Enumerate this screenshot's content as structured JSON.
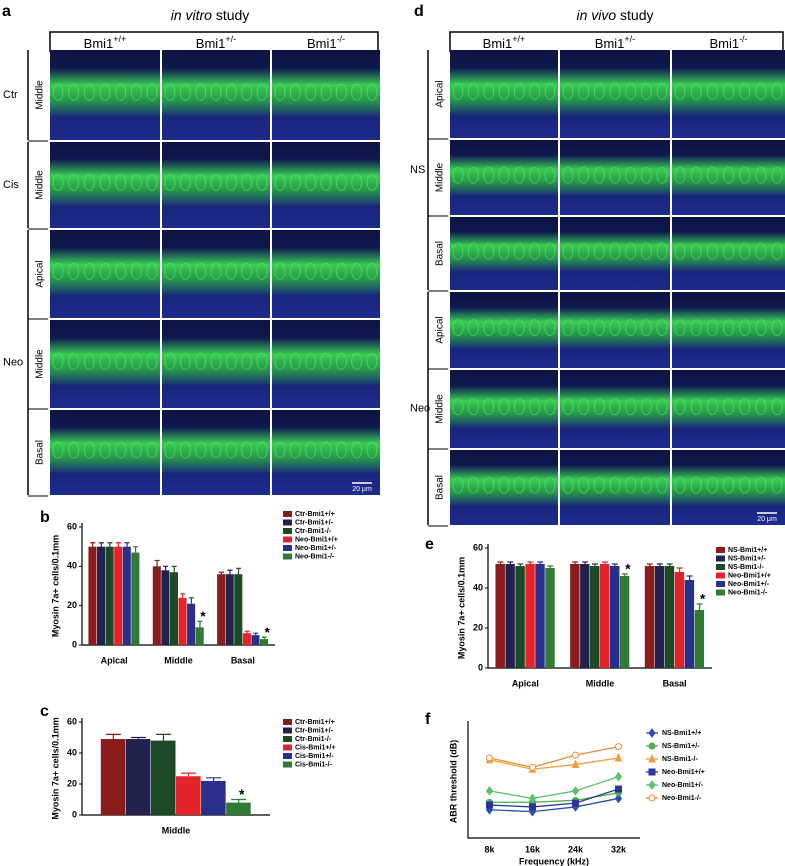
{
  "figure": {
    "a": {
      "label": "a",
      "title_italic": "in vitro",
      "title_rest": "study",
      "columns": [
        {
          "base": "Bmi1",
          "sup": "+/+"
        },
        {
          "base": "Bmi1",
          "sup": "+/-"
        },
        {
          "base": "Bmi1",
          "sup": "-/-"
        }
      ],
      "groups": [
        {
          "name": "Ctr",
          "rows": [
            "Middle"
          ]
        },
        {
          "name": "Cis",
          "rows": [
            "Middle"
          ]
        },
        {
          "name": "Neo",
          "rows": [
            "Apical",
            "Middle",
            "Basal"
          ]
        }
      ],
      "scale_bar": "20 μm"
    },
    "d": {
      "label": "d",
      "title_italic": "in vivo",
      "title_rest": "study",
      "columns": [
        {
          "base": "Bmi1",
          "sup": "+/+"
        },
        {
          "base": "Bmi1",
          "sup": "+/-"
        },
        {
          "base": "Bmi1",
          "sup": "-/-"
        }
      ],
      "groups": [
        {
          "name": "NS",
          "rows": [
            "Apical",
            "Middle",
            "Basal"
          ]
        },
        {
          "name": "Neo",
          "rows": [
            "Apical",
            "Middle",
            "Basal"
          ]
        }
      ],
      "scale_bar": "20 μm"
    }
  },
  "chart_data": [
    {
      "type": "bar",
      "label": "b",
      "y_label": "Myosin 7a+ cells/0.1mm",
      "categories": [
        "Apical",
        "Middle",
        "Basal"
      ],
      "ylim": [
        0,
        60
      ],
      "yticks": [
        0,
        20,
        40,
        60
      ],
      "series": [
        {
          "name": "Ctr-Bmi1+/+",
          "color": "#8b1c1c",
          "values": [
            50,
            40,
            36
          ],
          "errors": [
            2,
            3,
            1
          ]
        },
        {
          "name": "Ctr-Bmi1+/-",
          "color": "#22224f",
          "values": [
            50,
            38,
            36
          ],
          "errors": [
            2,
            2,
            2
          ]
        },
        {
          "name": "Ctr-Bmi1-/-",
          "color": "#1d4a26",
          "values": [
            50,
            37,
            36
          ],
          "errors": [
            2,
            3,
            3
          ]
        },
        {
          "name": "Neo-Bmi1+/+",
          "color": "#e3232a",
          "values": [
            50,
            24,
            6
          ],
          "errors": [
            2,
            2,
            1
          ]
        },
        {
          "name": "Neo-Bmi1+/-",
          "color": "#2a2f8c",
          "values": [
            50,
            21,
            5
          ],
          "errors": [
            2,
            3,
            1
          ]
        },
        {
          "name": "Neo-Bmi1-/-",
          "color": "#2f7a35",
          "values": [
            47,
            9,
            3
          ],
          "errors": [
            3,
            3,
            1
          ],
          "significance": [
            null,
            "*",
            "*"
          ]
        }
      ]
    },
    {
      "type": "bar",
      "label": "c",
      "y_label": "Myosin 7a+ cells/0.1mm",
      "categories": [
        "Middle"
      ],
      "ylim": [
        0,
        60
      ],
      "yticks": [
        0,
        20,
        40,
        60
      ],
      "series": [
        {
          "name": "Ctr-Bmi1+/+",
          "color": "#8b1c1c",
          "values": [
            49
          ],
          "errors": [
            3
          ]
        },
        {
          "name": "Ctr-Bmi1+/-",
          "color": "#22224f",
          "values": [
            49
          ],
          "errors": [
            1
          ]
        },
        {
          "name": "Ctr-Bmi1-/-",
          "color": "#1d4a26",
          "values": [
            48
          ],
          "errors": [
            4
          ]
        },
        {
          "name": "Cis-Bmi1+/+",
          "color": "#e3232a",
          "values": [
            25
          ],
          "errors": [
            2
          ]
        },
        {
          "name": "Cis-Bmi1+/-",
          "color": "#2a2f8c",
          "values": [
            22
          ],
          "errors": [
            2
          ]
        },
        {
          "name": "Cis-Bmi1-/-",
          "color": "#2f7a35",
          "values": [
            8
          ],
          "errors": [
            2
          ],
          "significance": [
            "*"
          ]
        }
      ]
    },
    {
      "type": "bar",
      "label": "e",
      "y_label": "Myosin 7a+ cells/0.1mm",
      "categories": [
        "Apical",
        "Middle",
        "Basal"
      ],
      "ylim": [
        0,
        60
      ],
      "yticks": [
        0,
        20,
        40,
        60
      ],
      "series": [
        {
          "name": "NS-Bmi1+/+",
          "color": "#8b1c1c",
          "values": [
            52,
            52,
            51
          ],
          "errors": [
            1,
            1,
            1
          ]
        },
        {
          "name": "NS-Bmi1+/-",
          "color": "#22224f",
          "values": [
            52,
            52,
            51
          ],
          "errors": [
            1,
            1,
            1
          ]
        },
        {
          "name": "NS-Bmi1-/-",
          "color": "#1d4a26",
          "values": [
            51,
            51,
            51
          ],
          "errors": [
            1,
            1,
            1
          ]
        },
        {
          "name": "Neo-Bmi1+/+",
          "color": "#e3232a",
          "values": [
            52,
            52,
            48
          ],
          "errors": [
            1,
            1,
            2
          ]
        },
        {
          "name": "Neo-Bmi1+/-",
          "color": "#2a2f8c",
          "values": [
            52,
            51,
            44
          ],
          "errors": [
            1,
            1,
            2
          ]
        },
        {
          "name": "Neo-Bmi1-/-",
          "color": "#2f7a35",
          "values": [
            50,
            46,
            29
          ],
          "errors": [
            1,
            1,
            3
          ],
          "significance": [
            null,
            "*",
            "*"
          ]
        }
      ]
    },
    {
      "type": "line",
      "label": "f",
      "y_label": "ABR threshold (dB)",
      "x_label": "Frequency (kHz)",
      "categories": [
        "8k",
        "16k",
        "24k",
        "32k"
      ],
      "ylim": [
        0,
        120
      ],
      "series": [
        {
          "name": "NS-Bmi1+/+",
          "color": "#2a4fb0",
          "marker": "diamond",
          "values": [
            30,
            28,
            33,
            42
          ]
        },
        {
          "name": "NS-Bmi1+/-",
          "color": "#4caf50",
          "marker": "circle",
          "values": [
            38,
            38,
            40,
            48
          ]
        },
        {
          "name": "NS-Bmi1-/-",
          "color": "#f39c3c",
          "marker": "triangle",
          "values": [
            83,
            73,
            78,
            85
          ]
        },
        {
          "name": "Neo-Bmi1+/+",
          "color": "#2c3596",
          "marker": "square",
          "values": [
            35,
            33,
            37,
            52
          ]
        },
        {
          "name": "Neo-Bmi1+/-",
          "color": "#5cc26a",
          "marker": "diamond",
          "values": [
            50,
            42,
            50,
            65
          ]
        },
        {
          "name": "Neo-Bmi1-/-",
          "color": "#f08a30",
          "marker": "open-circle",
          "values": [
            85,
            75,
            88,
            97
          ]
        }
      ]
    }
  ]
}
